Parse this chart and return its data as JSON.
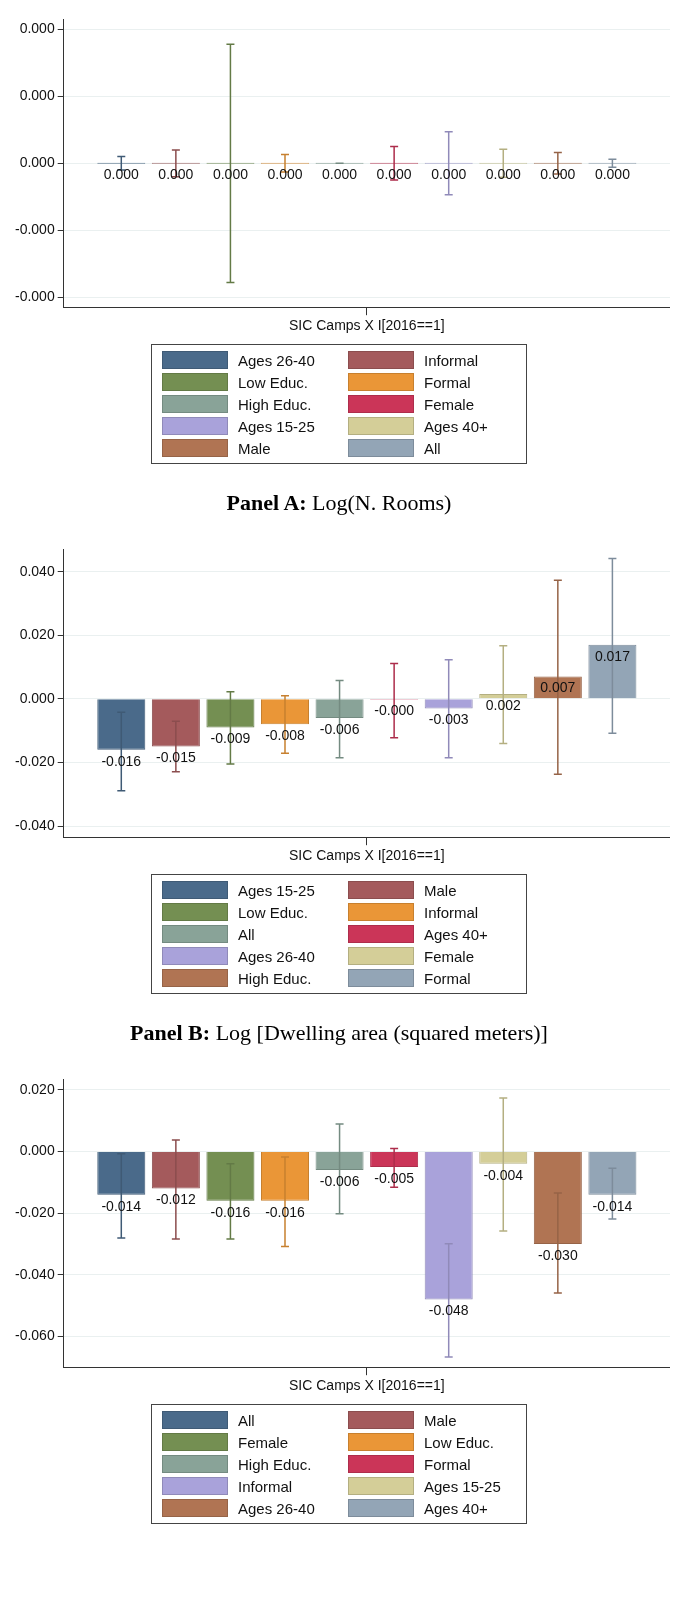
{
  "chart_data": [
    {
      "type": "bar",
      "title": "Panel A: Log(N. Rooms)",
      "categories": [
        "SIC Camps X I[2016==1]"
      ],
      "ylim": [
        -0.000215,
        0.000215
      ],
      "yticks": [
        {
          "value": -0.0002,
          "label": "-0.000"
        },
        {
          "value": -0.0001,
          "label": "-0.000"
        },
        {
          "value": 0,
          "label": "0.000"
        },
        {
          "value": 0.0001,
          "label": "0.000"
        },
        {
          "value": 0.0002,
          "label": "0.000"
        }
      ],
      "grid": "y",
      "legend": "bottom",
      "series": [
        {
          "name": "Ages 26-40",
          "color": "#4a6a8a",
          "values": [
            0
          ],
          "errors": [
            1e-05
          ],
          "value_labels": [
            "0.000"
          ]
        },
        {
          "name": "Informal",
          "color": "#a45a5c",
          "values": [
            0
          ],
          "errors": [
            2e-05
          ],
          "value_labels": [
            "0.000"
          ]
        },
        {
          "name": "Low Educ.",
          "color": "#748f52",
          "values": [
            0
          ],
          "errors": [
            0.000178
          ],
          "value_labels": [
            "0.000"
          ]
        },
        {
          "name": "Formal",
          "color": "#ea9637",
          "values": [
            0
          ],
          "errors": [
            1.3e-05
          ],
          "value_labels": [
            "0.000"
          ]
        },
        {
          "name": "High Educ.",
          "color": "#89a398",
          "values": [
            0
          ],
          "errors": [
            0
          ],
          "value_labels": [
            "0.000"
          ]
        },
        {
          "name": "Female",
          "color": "#cb3558",
          "values": [
            0
          ],
          "errors": [
            2.5e-05
          ],
          "value_labels": [
            "0.000"
          ]
        },
        {
          "name": "Ages 15-25",
          "color": "#a9a2da",
          "values": [
            0
          ],
          "errors": [
            4.7e-05
          ],
          "value_labels": [
            "0.000"
          ]
        },
        {
          "name": "Ages 40+",
          "color": "#d4ce98",
          "values": [
            0
          ],
          "errors": [
            2.1e-05
          ],
          "value_labels": [
            "0.000"
          ]
        },
        {
          "name": "Male",
          "color": "#b07453",
          "values": [
            0
          ],
          "errors": [
            1.6e-05
          ],
          "value_labels": [
            "0.000"
          ]
        },
        {
          "name": "All",
          "color": "#93a5b6",
          "values": [
            0
          ],
          "errors": [
            6e-06
          ],
          "value_labels": [
            "0.000"
          ]
        }
      ]
    },
    {
      "type": "bar",
      "title": "Panel B: Log [Dwelling area (squared meters)]",
      "categories": [
        "SIC Camps X I[2016==1]"
      ],
      "ylim": [
        -0.0435,
        0.047
      ],
      "yticks": [
        {
          "value": -0.04,
          "label": "-0.040"
        },
        {
          "value": -0.02,
          "label": "-0.020"
        },
        {
          "value": 0,
          "label": "0.000"
        },
        {
          "value": 0.02,
          "label": "0.020"
        },
        {
          "value": 0.04,
          "label": "0.040"
        }
      ],
      "grid": "y",
      "legend": "bottom",
      "series": [
        {
          "name": "Ages 15-25",
          "color": "#4a6a8a",
          "values": [
            -0.016
          ],
          "errors": [
            [
              -0.0289,
              -0.0042
            ]
          ],
          "value_labels": [
            "-0.016"
          ]
        },
        {
          "name": "Male",
          "color": "#a45a5c",
          "values": [
            -0.015
          ],
          "errors": [
            [
              -0.0229,
              -0.007
            ]
          ],
          "value_labels": [
            "-0.015"
          ]
        },
        {
          "name": "Low Educ.",
          "color": "#748f52",
          "values": [
            -0.009
          ],
          "errors": [
            [
              -0.0205,
              0.0022
            ]
          ],
          "value_labels": [
            "-0.009"
          ]
        },
        {
          "name": "Informal",
          "color": "#ea9637",
          "values": [
            -0.008
          ],
          "errors": [
            [
              -0.0171,
              0.001
            ]
          ],
          "value_labels": [
            "-0.008"
          ]
        },
        {
          "name": "All",
          "color": "#89a398",
          "values": [
            -0.006
          ],
          "errors": [
            [
              -0.0185,
              0.0058
            ]
          ],
          "value_labels": [
            "-0.006"
          ]
        },
        {
          "name": "Ages 40+",
          "color": "#cb3558",
          "values": [
            -0.0002
          ],
          "errors": [
            [
              -0.0122,
              0.0111
            ]
          ],
          "value_labels": [
            "-0.000"
          ]
        },
        {
          "name": "Ages 26-40",
          "color": "#a9a2da",
          "values": [
            -0.003
          ],
          "errors": [
            [
              -0.0185,
              0.0123
            ]
          ],
          "value_labels": [
            "-0.003"
          ]
        },
        {
          "name": "Female",
          "color": "#d4ce98",
          "values": [
            0.0015
          ],
          "errors": [
            [
              -0.014,
              0.0167
            ]
          ],
          "value_labels": [
            "0.002"
          ]
        },
        {
          "name": "High Educ.",
          "color": "#b07453",
          "values": [
            0.007
          ],
          "errors": [
            [
              -0.0237,
              0.0373
            ]
          ],
          "value_labels": [
            "0.007"
          ]
        },
        {
          "name": "Formal",
          "color": "#93a5b6",
          "values": [
            0.017
          ],
          "errors": [
            [
              -0.0108,
              0.0441
            ]
          ],
          "value_labels": [
            "0.017"
          ]
        }
      ]
    },
    {
      "type": "bar",
      "categories": [
        "SIC Camps X I[2016==1]"
      ],
      "ylim": [
        -0.07,
        0.0234
      ],
      "yticks": [
        {
          "value": -0.06,
          "label": "-0.060"
        },
        {
          "value": -0.04,
          "label": "-0.040"
        },
        {
          "value": -0.02,
          "label": "-0.020"
        },
        {
          "value": 0,
          "label": "0.000"
        },
        {
          "value": 0.02,
          "label": "0.020"
        }
      ],
      "grid": "y",
      "legend": "bottom",
      "series": [
        {
          "name": "All",
          "color": "#4a6a8a",
          "values": [
            -0.014
          ],
          "errors": [
            [
              -0.0281,
              -0.0007
            ]
          ],
          "value_labels": [
            "-0.014"
          ]
        },
        {
          "name": "Male",
          "color": "#a45a5c",
          "values": [
            -0.012
          ],
          "errors": [
            [
              -0.0284,
              0.0037
            ]
          ],
          "value_labels": [
            "-0.012"
          ]
        },
        {
          "name": "Female",
          "color": "#748f52",
          "values": [
            -0.016
          ],
          "errors": [
            [
              -0.0284,
              -0.004
            ]
          ],
          "value_labels": [
            "-0.016"
          ]
        },
        {
          "name": "Low Educ.",
          "color": "#ea9637",
          "values": [
            -0.016
          ],
          "errors": [
            [
              -0.0308,
              -0.0018
            ]
          ],
          "value_labels": [
            "-0.016"
          ]
        },
        {
          "name": "High Educ.",
          "color": "#89a398",
          "values": [
            -0.006
          ],
          "errors": [
            [
              -0.0202,
              0.0089
            ]
          ],
          "value_labels": [
            "-0.006"
          ]
        },
        {
          "name": "Formal",
          "color": "#cb3558",
          "values": [
            -0.005
          ],
          "errors": [
            [
              -0.0116,
              0.001
            ]
          ],
          "value_labels": [
            "-0.005"
          ]
        },
        {
          "name": "Informal",
          "color": "#a9a2da",
          "values": [
            -0.048
          ],
          "errors": [
            [
              -0.0667,
              -0.0299
            ]
          ],
          "value_labels": [
            "-0.048"
          ]
        },
        {
          "name": "Ages 15-25",
          "color": "#d4ce98",
          "values": [
            -0.004
          ],
          "errors": [
            [
              -0.0258,
              0.0174
            ]
          ],
          "value_labels": [
            "-0.004"
          ]
        },
        {
          "name": "Ages 26-40",
          "color": "#b07453",
          "values": [
            -0.03
          ],
          "errors": [
            [
              -0.0459,
              -0.0135
            ]
          ],
          "value_labels": [
            "-0.030"
          ]
        },
        {
          "name": "Ages 40+",
          "color": "#93a5b6",
          "values": [
            -0.014
          ],
          "errors": [
            [
              -0.0219,
              -0.0054
            ]
          ],
          "value_labels": [
            "-0.014"
          ]
        }
      ]
    }
  ]
}
